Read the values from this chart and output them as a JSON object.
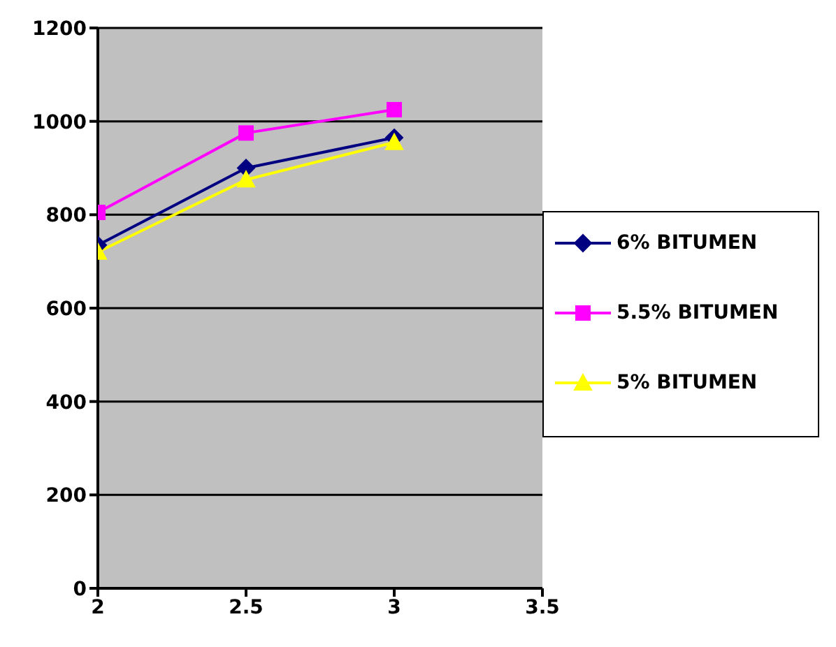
{
  "chart_data": {
    "type": "line",
    "x": [
      2,
      2.5,
      3
    ],
    "xlim": [
      2,
      3.5
    ],
    "xticks": [
      2,
      2.5,
      3,
      3.5
    ],
    "ylim": [
      0,
      1200
    ],
    "yticks": [
      0,
      200,
      400,
      600,
      800,
      1000,
      1200
    ],
    "grid": "y",
    "legend": "right",
    "series": [
      {
        "name": "6% BITUMEN",
        "color": "#000080",
        "marker": "diamond",
        "values": [
          735,
          900,
          965
        ]
      },
      {
        "name": "5.5% BITUMEN",
        "color": "#ff00ff",
        "marker": "square",
        "values": [
          805,
          975,
          1025
        ]
      },
      {
        "name": "5% BITUMEN",
        "color": "#ffff00",
        "marker": "triangle",
        "values": [
          720,
          875,
          955
        ]
      }
    ]
  }
}
